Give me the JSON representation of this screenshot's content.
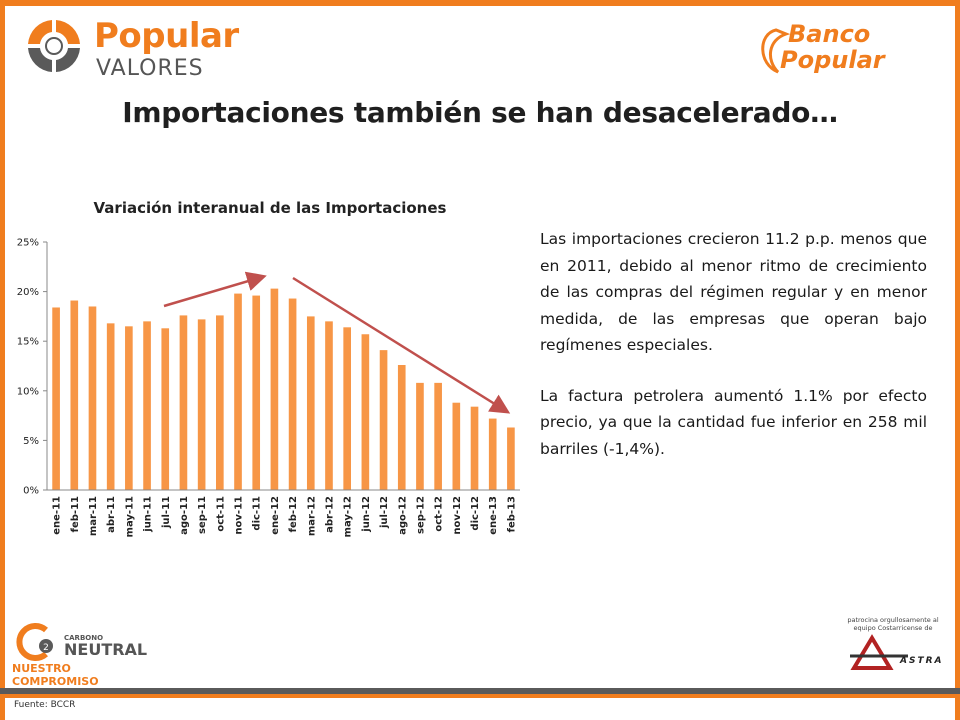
{
  "header": {
    "logo_left_brand": "Popular",
    "logo_left_sub": "VALORES",
    "logo_right_line1": "Banco",
    "logo_right_line2": "Popular"
  },
  "title": "Importaciones también se han desacelerado…",
  "chart_data": {
    "type": "bar",
    "title": "Variación interanual de las Importaciones",
    "categories": [
      "ene-11",
      "feb-11",
      "mar-11",
      "abr-11",
      "may-11",
      "jun-11",
      "jul-11",
      "ago-11",
      "sep-11",
      "oct-11",
      "nov-11",
      "dic-11",
      "ene-12",
      "feb-12",
      "mar-12",
      "abr-12",
      "may-12",
      "jun-12",
      "jul-12",
      "ago-12",
      "sep-12",
      "oct-12",
      "nov-12",
      "dic-12",
      "ene-13",
      "feb-13"
    ],
    "values": [
      18.4,
      19.1,
      18.5,
      16.8,
      16.5,
      17.0,
      16.3,
      17.6,
      17.2,
      17.6,
      19.8,
      19.6,
      20.3,
      19.3,
      17.5,
      17.0,
      16.4,
      15.7,
      14.1,
      12.6,
      10.8,
      10.8,
      8.8,
      8.4,
      7.2,
      6.3
    ],
    "ylim": [
      0,
      25
    ],
    "yticks": [
      "0%",
      "5%",
      "10%",
      "15%",
      "20%",
      "25%"
    ],
    "bar_color": "#f79646",
    "arrow_color": "#c0504d",
    "grid": false,
    "legend": "none"
  },
  "body": {
    "p1": "Las importaciones crecieron 11.2 p.p. menos que en 2011, debido al menor ritmo de crecimiento de las compras del régimen regular y en menor medida, de las empresas que operan bajo regímenes especiales.",
    "p2": "La factura petrolera aumentó 1.1% por efecto precio, ya que la cantidad fue inferior en 258 mil barriles (-1,4%)."
  },
  "footer": {
    "co2_small": "CARBONO",
    "co2_big": "NEUTRAL",
    "co2_slogan": "NUESTRO COMPROMISO",
    "sponsor_text": "patrocina orgullosamente al equipo Costarricense de",
    "sponsor_brand": "ASTRA",
    "source": "Fuente: BCCR"
  },
  "colors": {
    "accent": "#f07d1e",
    "dark_bar": "#5a5a5a"
  }
}
